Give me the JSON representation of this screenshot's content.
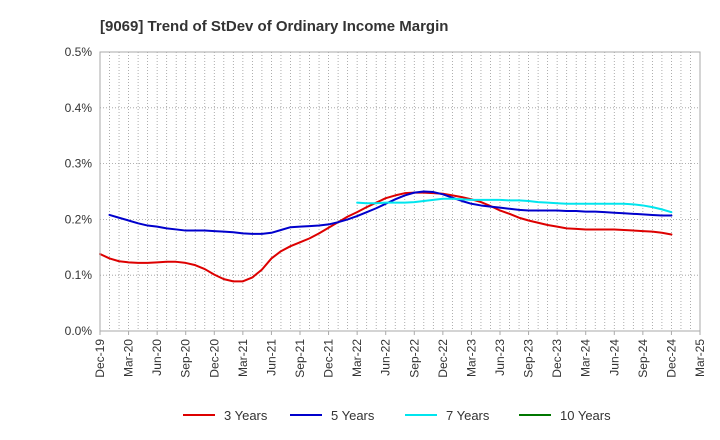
{
  "chart_data": {
    "type": "line",
    "title": "[9069]  Trend of StDev of Ordinary Income Margin",
    "xlabel": "",
    "ylabel": "",
    "ylim": [
      0,
      0.5
    ],
    "y_ticks": [
      "0.0%",
      "0.1%",
      "0.2%",
      "0.3%",
      "0.4%",
      "0.5%"
    ],
    "x_ticks": [
      "Dec-19",
      "Mar-20",
      "Jun-20",
      "Sep-20",
      "Dec-20",
      "Mar-21",
      "Jun-21",
      "Sep-21",
      "Dec-21",
      "Mar-22",
      "Jun-22",
      "Sep-22",
      "Dec-22",
      "Mar-23",
      "Jun-23",
      "Sep-23",
      "Dec-23",
      "Mar-24",
      "Jun-24",
      "Sep-24",
      "Dec-24",
      "Mar-25"
    ],
    "grid": true,
    "legend_position": "bottom",
    "series": [
      {
        "name": "3 Years",
        "color": "#dd0000",
        "x": [
          "Dec-19",
          "Jan-20",
          "Feb-20",
          "Mar-20",
          "Apr-20",
          "May-20",
          "Jun-20",
          "Jul-20",
          "Aug-20",
          "Sep-20",
          "Oct-20",
          "Nov-20",
          "Dec-20",
          "Jan-21",
          "Feb-21",
          "Mar-21",
          "Apr-21",
          "May-21",
          "Jun-21",
          "Jul-21",
          "Aug-21",
          "Sep-21",
          "Oct-21",
          "Nov-21",
          "Dec-21",
          "Jan-22",
          "Feb-22",
          "Mar-22",
          "Apr-22",
          "May-22",
          "Jun-22",
          "Jul-22",
          "Aug-22",
          "Sep-22",
          "Oct-22",
          "Nov-22",
          "Dec-22",
          "Jan-23",
          "Feb-23",
          "Mar-23",
          "Apr-23",
          "May-23",
          "Jun-23",
          "Jul-23",
          "Aug-23",
          "Sep-23",
          "Oct-23",
          "Nov-23",
          "Dec-23",
          "Jan-24",
          "Feb-24",
          "Mar-24",
          "Apr-24",
          "May-24",
          "Jun-24",
          "Jul-24",
          "Aug-24",
          "Sep-24",
          "Oct-24",
          "Nov-24",
          "Dec-24"
        ],
        "values": [
          0.138,
          0.13,
          0.125,
          0.123,
          0.122,
          0.122,
          0.123,
          0.124,
          0.124,
          0.122,
          0.118,
          0.111,
          0.101,
          0.093,
          0.089,
          0.089,
          0.096,
          0.11,
          0.13,
          0.143,
          0.152,
          0.159,
          0.166,
          0.175,
          0.185,
          0.195,
          0.205,
          0.213,
          0.222,
          0.23,
          0.238,
          0.243,
          0.247,
          0.248,
          0.248,
          0.247,
          0.246,
          0.243,
          0.24,
          0.236,
          0.231,
          0.224,
          0.216,
          0.21,
          0.203,
          0.198,
          0.194,
          0.19,
          0.187,
          0.184,
          0.183,
          0.182,
          0.182,
          0.182,
          0.182,
          0.181,
          0.18,
          0.179,
          0.178,
          0.176,
          0.173
        ]
      },
      {
        "name": "5 Years",
        "color": "#0000cc",
        "x": [
          "Jan-20",
          "Feb-20",
          "Mar-20",
          "Apr-20",
          "May-20",
          "Jun-20",
          "Jul-20",
          "Aug-20",
          "Sep-20",
          "Oct-20",
          "Nov-20",
          "Dec-20",
          "Jan-21",
          "Feb-21",
          "Mar-21",
          "Apr-21",
          "May-21",
          "Jun-21",
          "Jul-21",
          "Aug-21",
          "Sep-21",
          "Oct-21",
          "Nov-21",
          "Dec-21",
          "Jan-22",
          "Feb-22",
          "Mar-22",
          "Apr-22",
          "May-22",
          "Jun-22",
          "Jul-22",
          "Aug-22",
          "Sep-22",
          "Oct-22",
          "Nov-22",
          "Dec-22",
          "Jan-23",
          "Feb-23",
          "Mar-23",
          "Apr-23",
          "May-23",
          "Jun-23",
          "Jul-23",
          "Aug-23",
          "Sep-23",
          "Oct-23",
          "Nov-23",
          "Dec-23",
          "Jan-24",
          "Feb-24",
          "Mar-24",
          "Apr-24",
          "May-24",
          "Jun-24",
          "Jul-24",
          "Aug-24",
          "Sep-24",
          "Oct-24",
          "Nov-24",
          "Dec-24"
        ],
        "values": [
          0.208,
          0.203,
          0.198,
          0.193,
          0.189,
          0.187,
          0.184,
          0.182,
          0.18,
          0.18,
          0.18,
          0.179,
          0.178,
          0.177,
          0.175,
          0.174,
          0.174,
          0.176,
          0.181,
          0.186,
          0.187,
          0.188,
          0.189,
          0.191,
          0.195,
          0.2,
          0.206,
          0.213,
          0.22,
          0.228,
          0.236,
          0.243,
          0.248,
          0.25,
          0.249,
          0.245,
          0.239,
          0.233,
          0.228,
          0.225,
          0.223,
          0.221,
          0.219,
          0.217,
          0.216,
          0.216,
          0.216,
          0.216,
          0.215,
          0.215,
          0.214,
          0.214,
          0.213,
          0.212,
          0.211,
          0.21,
          0.209,
          0.208,
          0.207,
          0.207
        ]
      },
      {
        "name": "7 Years",
        "color": "#00e5ee",
        "x": [
          "Mar-22",
          "Apr-22",
          "May-22",
          "Jun-22",
          "Jul-22",
          "Aug-22",
          "Sep-22",
          "Oct-22",
          "Nov-22",
          "Dec-22",
          "Jan-23",
          "Feb-23",
          "Mar-23",
          "Apr-23",
          "May-23",
          "Jun-23",
          "Jul-23",
          "Aug-23",
          "Sep-23",
          "Oct-23",
          "Nov-23",
          "Dec-23",
          "Jan-24",
          "Feb-24",
          "Mar-24",
          "Apr-24",
          "May-24",
          "Jun-24",
          "Jul-24",
          "Aug-24",
          "Sep-24",
          "Oct-24",
          "Nov-24",
          "Dec-24"
        ],
        "values": [
          0.23,
          0.229,
          0.229,
          0.23,
          0.23,
          0.23,
          0.231,
          0.233,
          0.235,
          0.237,
          0.237,
          0.236,
          0.235,
          0.235,
          0.235,
          0.235,
          0.234,
          0.234,
          0.233,
          0.231,
          0.23,
          0.229,
          0.228,
          0.228,
          0.228,
          0.228,
          0.228,
          0.228,
          0.228,
          0.227,
          0.225,
          0.222,
          0.218,
          0.213
        ]
      },
      {
        "name": "10 Years",
        "color": "#007700",
        "x": [],
        "values": []
      }
    ]
  }
}
